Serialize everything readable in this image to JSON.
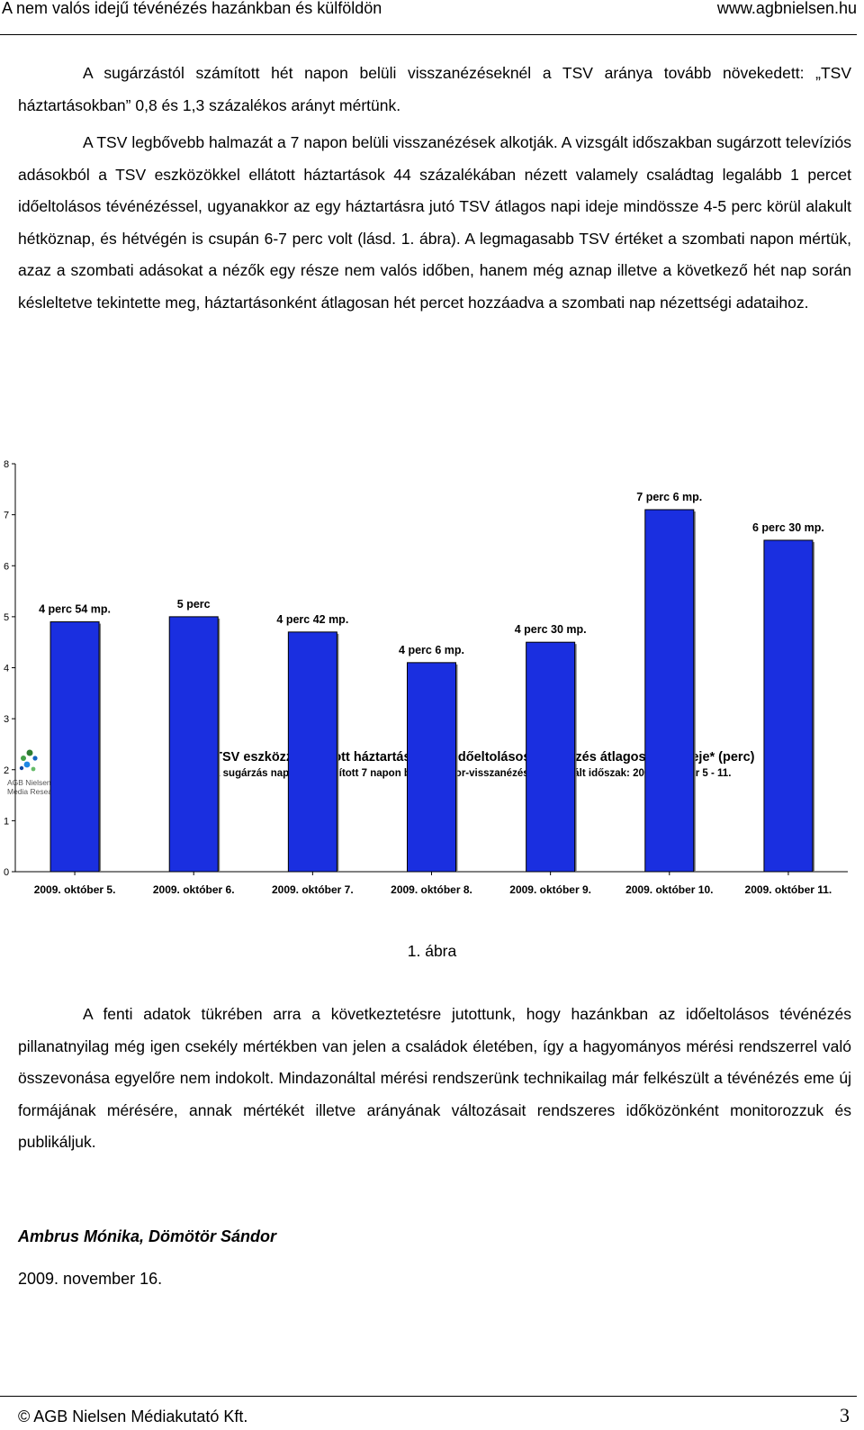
{
  "header": {
    "title": "A nem valós idejű tévénézés hazánkban és külföldön",
    "url": "www.agbnielsen.hu"
  },
  "paragraphs": {
    "p1": "A sugárzástól számított hét napon belüli visszanézéseknél a TSV aránya tovább növekedett: „TSV háztartásokban” 0,8 és 1,3 százalékos arányt mértünk.",
    "p2": "A TSV legbővebb halmazát a 7 napon belüli visszanézések alkotják. A vizsgált időszakban sugárzott televíziós adásokból a TSV eszközökkel ellátott háztartások 44 százalékában nézett valamely családtag legalább 1 percet időeltolásos tévénézéssel, ugyanakkor az egy háztartásra jutó TSV átlagos napi ideje mindössze 4-5 perc körül alakult hétköznap, és hétvégén is csupán 6-7 perc volt (lásd. 1. ábra). A legmagasabb TSV értéket a szombati napon mértük, azaz a szombati adásokat a nézők egy része nem valós időben, hanem még aznap illetve a következő hét nap során késleltetve tekintette meg, háztartásonként átlagosan hét percet hozzáadva a szombati nap nézettségi adataihoz.",
    "p3": "A fenti adatok tükrében arra a következtetésre jutottunk, hogy hazánkban az időeltolásos tévénézés pillanatnyilag még igen csekély mértékben van jelen a családok életében, így a hagyományos mérési rendszerrel való összevonása egyelőre nem indokolt. Mindazonáltal mérési rendszerünk technikailag már felkészült a tévénézés eme új formájának mérésére, annak mértékét illetve arányának változásait rendszeres időközönként monitorozzuk és publikáljuk."
  },
  "logo": {
    "line1": "AGB Nielsen",
    "line2": "Media Research"
  },
  "chart_data": {
    "type": "bar",
    "title": "Egy TSV eszközzel ellátott háztartásra jutó időeltolásos tévénézés átlagos napi ideje* (perc)",
    "subtitle": "*a sugárzás napjától számított 7 napon belüli műsor-visszanézések; Vizsgált időszak: 2009. október 5 - 11.",
    "categories": [
      "2009. október 5.",
      "2009. október 6.",
      "2009. október 7.",
      "2009. október 8.",
      "2009. október 9.",
      "2009. október 10.",
      "2009. október 11."
    ],
    "values": [
      4.9,
      5.0,
      4.7,
      4.1,
      4.5,
      7.1,
      6.5
    ],
    "data_labels": [
      "4 perc 54 mp.",
      "5 perc",
      "4 perc 42 mp.",
      "4 perc 6 mp.",
      "4 perc 30 mp.",
      "7 perc 6 mp.",
      "6 perc 30 mp."
    ],
    "ylim": [
      0,
      8
    ],
    "yticks": [
      0,
      1,
      2,
      3,
      4,
      5,
      6,
      7,
      8
    ],
    "grid": false,
    "bar_color": "#1a2fe0"
  },
  "caption": "1. ábra",
  "signature": {
    "authors": "Ambrus Mónika, Dömötör Sándor",
    "date": "2009. november 16."
  },
  "footer": {
    "copyright": "© AGB Nielsen Médiakutató Kft.",
    "page": "3"
  }
}
